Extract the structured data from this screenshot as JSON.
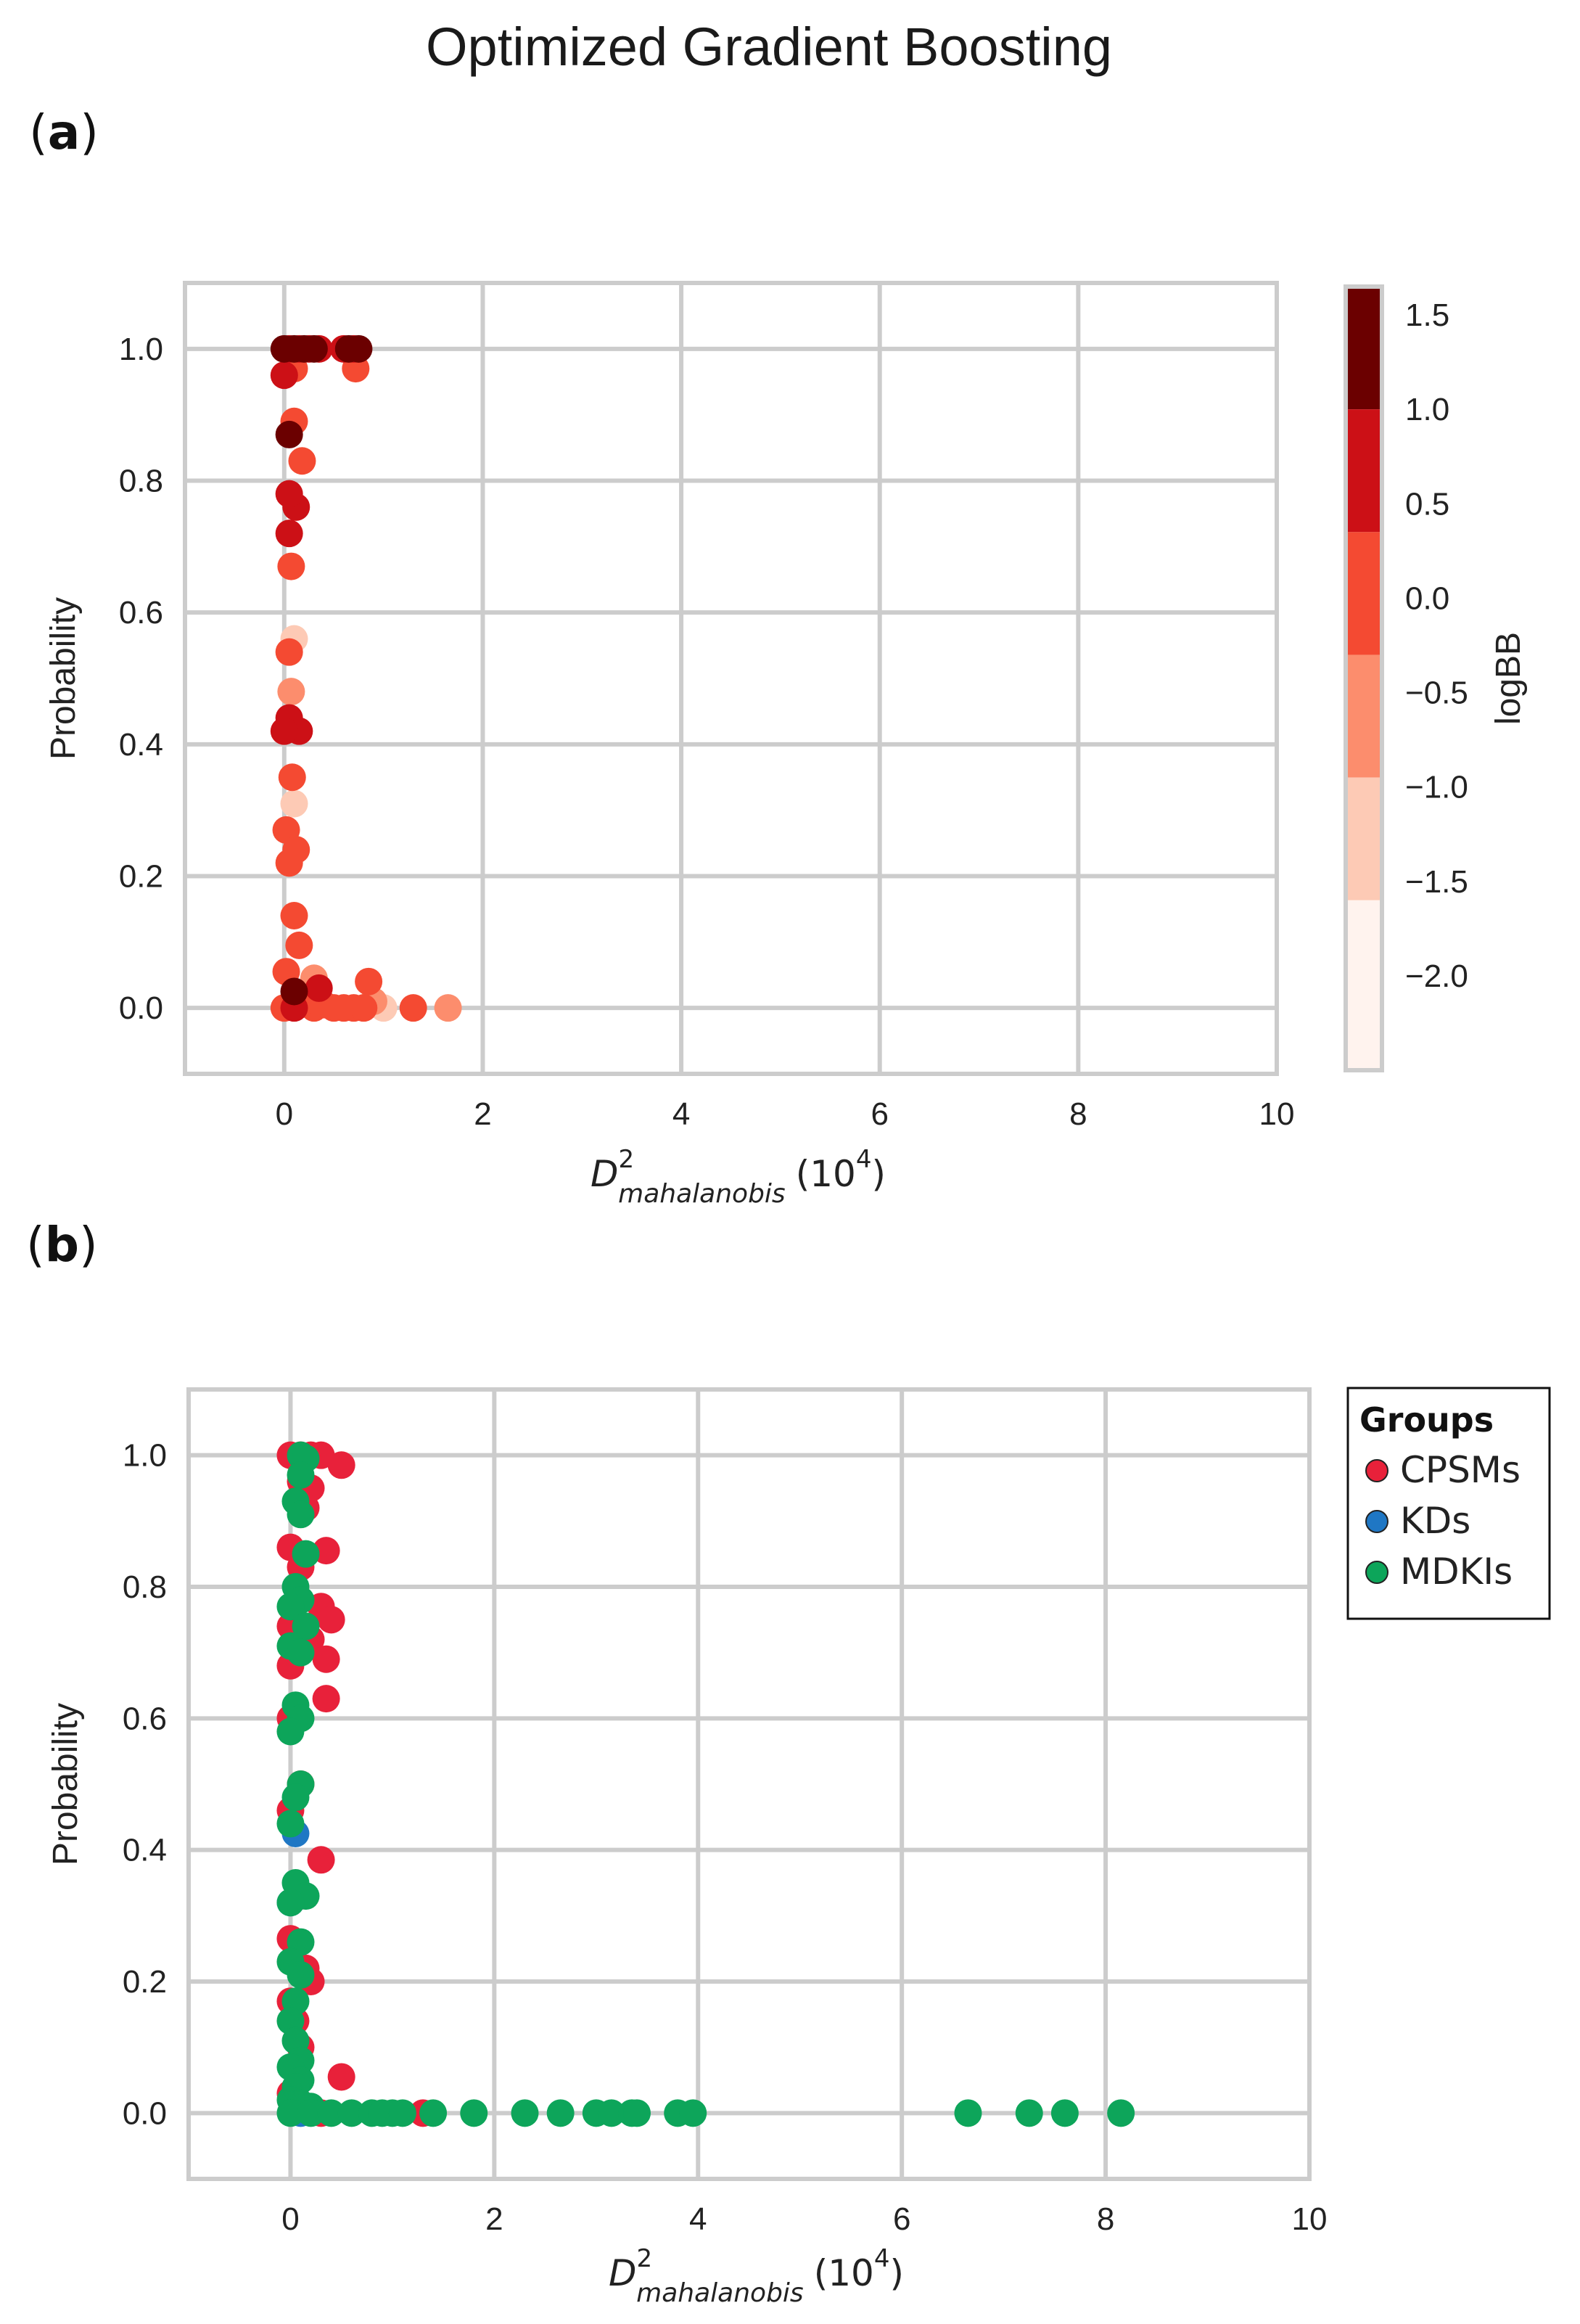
{
  "figure": {
    "title": "Optimized Gradient Boosting"
  },
  "chart_data": [
    {
      "panel_label": "(a)",
      "panel_letter": "a",
      "type": "scatter",
      "title": "",
      "xlabel": "D² mahalanobis (10⁴)",
      "xlabel_main": "D",
      "xlabel_sup": "2",
      "xlabel_sub": "mahalanobis",
      "xlabel_unit": "(10",
      "xlabel_unit_sup": "4",
      "xlabel_unit_close": ")",
      "ylabel": "Probability",
      "xlim": [
        -1,
        10
      ],
      "ylim": [
        -0.1,
        1.1
      ],
      "xticks": [
        0,
        2,
        4,
        6,
        8,
        10
      ],
      "yticks": [
        0.0,
        0.2,
        0.4,
        0.6,
        0.8,
        1.0
      ],
      "xtick_labels": [
        "0",
        "2",
        "4",
        "6",
        "8",
        "10"
      ],
      "ytick_labels": [
        "0.0",
        "0.2",
        "0.4",
        "0.6",
        "0.8",
        "1.0"
      ],
      "grid": true,
      "colorbar": {
        "label": "logBB",
        "range": [
          -2.5,
          1.65
        ],
        "ticks": [
          1.5,
          1.0,
          0.5,
          0.0,
          -0.5,
          -1.0,
          -1.5,
          -2.0
        ],
        "tick_labels": [
          "1.5",
          "1.0",
          "0.5",
          "0.0",
          "−0.5",
          "−1.0",
          "−1.5",
          "−2.0"
        ],
        "bins": [
          {
            "from": 1.0,
            "to": 1.65,
            "color": "#6b0000"
          },
          {
            "from": 0.35,
            "to": 1.0,
            "color": "#cc1016"
          },
          {
            "from": -0.3,
            "to": 0.35,
            "color": "#f44a32"
          },
          {
            "from": -0.95,
            "to": -0.3,
            "color": "#fc8d6d"
          },
          {
            "from": -1.6,
            "to": -0.95,
            "color": "#fdcab5"
          },
          {
            "from": -2.5,
            "to": -1.6,
            "color": "#fff3ee"
          }
        ]
      },
      "points": [
        {
          "x": 0.0,
          "y": 1.0,
          "c": 1.2
        },
        {
          "x": 0.05,
          "y": 1.0,
          "c": 0.6
        },
        {
          "x": 0.1,
          "y": 1.0,
          "c": 1.3
        },
        {
          "x": 0.15,
          "y": 1.0,
          "c": 0.8
        },
        {
          "x": 0.2,
          "y": 1.0,
          "c": 1.1
        },
        {
          "x": 0.25,
          "y": 1.0,
          "c": 0.7
        },
        {
          "x": 0.3,
          "y": 1.0,
          "c": 1.2
        },
        {
          "x": 0.35,
          "y": 1.0,
          "c": 0.5
        },
        {
          "x": 0.6,
          "y": 1.0,
          "c": 0.9
        },
        {
          "x": 0.65,
          "y": 1.0,
          "c": 1.2
        },
        {
          "x": 0.7,
          "y": 1.0,
          "c": 0.6
        },
        {
          "x": 0.75,
          "y": 1.0,
          "c": 1.0
        },
        {
          "x": 0.72,
          "y": 0.97,
          "c": 0.0
        },
        {
          "x": 0.0,
          "y": 0.96,
          "c": 0.5
        },
        {
          "x": 0.1,
          "y": 0.97,
          "c": 0.3
        },
        {
          "x": 0.1,
          "y": 0.89,
          "c": 0.0
        },
        {
          "x": 0.05,
          "y": 0.87,
          "c": 1.4
        },
        {
          "x": 0.18,
          "y": 0.83,
          "c": 0.1
        },
        {
          "x": 0.05,
          "y": 0.78,
          "c": 0.6
        },
        {
          "x": 0.12,
          "y": 0.76,
          "c": 0.5
        },
        {
          "x": 0.05,
          "y": 0.72,
          "c": 0.6
        },
        {
          "x": 0.07,
          "y": 0.67,
          "c": 0.2
        },
        {
          "x": 0.1,
          "y": 0.56,
          "c": -1.5
        },
        {
          "x": 0.05,
          "y": 0.54,
          "c": 0.1
        },
        {
          "x": 0.07,
          "y": 0.48,
          "c": -0.7
        },
        {
          "x": 0.05,
          "y": 0.44,
          "c": 0.6
        },
        {
          "x": 0.15,
          "y": 0.42,
          "c": 0.6
        },
        {
          "x": 0.0,
          "y": 0.42,
          "c": 0.6
        },
        {
          "x": 0.08,
          "y": 0.35,
          "c": 0.2
        },
        {
          "x": 0.1,
          "y": 0.31,
          "c": -1.5
        },
        {
          "x": 0.02,
          "y": 0.27,
          "c": 0.1
        },
        {
          "x": 0.12,
          "y": 0.24,
          "c": 0.2
        },
        {
          "x": 0.05,
          "y": 0.22,
          "c": 0.1
        },
        {
          "x": 0.1,
          "y": 0.14,
          "c": 0.2
        },
        {
          "x": 0.15,
          "y": 0.095,
          "c": 0.1
        },
        {
          "x": 0.02,
          "y": 0.055,
          "c": 0.0
        },
        {
          "x": 0.1,
          "y": 0.025,
          "c": 1.5
        },
        {
          "x": 0.3,
          "y": 0.045,
          "c": -0.6
        },
        {
          "x": 0.35,
          "y": 0.03,
          "c": 0.5
        },
        {
          "x": 0.85,
          "y": 0.04,
          "c": 0.0
        },
        {
          "x": 0.0,
          "y": 0.0,
          "c": 0.2
        },
        {
          "x": 0.1,
          "y": 0.0,
          "c": 0.5
        },
        {
          "x": 0.2,
          "y": 0.01,
          "c": 0.3
        },
        {
          "x": 0.3,
          "y": 0.0,
          "c": 0.1
        },
        {
          "x": 0.4,
          "y": 0.005,
          "c": 0.0
        },
        {
          "x": 0.5,
          "y": 0.0,
          "c": 0.2
        },
        {
          "x": 0.6,
          "y": 0.0,
          "c": 0.1
        },
        {
          "x": 0.7,
          "y": 0.0,
          "c": 0.0
        },
        {
          "x": 0.8,
          "y": 0.0,
          "c": 0.2
        },
        {
          "x": 0.9,
          "y": 0.01,
          "c": -0.7
        },
        {
          "x": 1.0,
          "y": 0.0,
          "c": -1.2
        },
        {
          "x": 1.3,
          "y": 0.0,
          "c": 0.1
        },
        {
          "x": 1.65,
          "y": 0.0,
          "c": -0.8
        }
      ]
    },
    {
      "panel_label": "(b)",
      "panel_letter": "b",
      "type": "scatter",
      "title": "",
      "xlabel": "D² mahalanobis (10⁴)",
      "xlabel_main": "D",
      "xlabel_sup": "2",
      "xlabel_sub": "mahalanobis",
      "xlabel_unit": "(10",
      "xlabel_unit_sup": "4",
      "xlabel_unit_close": ")",
      "ylabel": "Probability",
      "xlim": [
        -1,
        10
      ],
      "ylim": [
        -0.1,
        1.1
      ],
      "xticks": [
        0,
        2,
        4,
        6,
        8,
        10
      ],
      "yticks": [
        0.0,
        0.2,
        0.4,
        0.6,
        0.8,
        1.0
      ],
      "xtick_labels": [
        "0",
        "2",
        "4",
        "6",
        "8",
        "10"
      ],
      "ytick_labels": [
        "0.0",
        "0.2",
        "0.4",
        "0.6",
        "0.8",
        "1.0"
      ],
      "grid": true,
      "legend": {
        "title": "Groups",
        "placement": "outside-right-top",
        "entries": [
          {
            "label": "CPSMs",
            "color": "#e8213a"
          },
          {
            "label": "KDs",
            "color": "#1f77c4"
          },
          {
            "label": "MDKIs",
            "color": "#0da55a"
          }
        ]
      },
      "series": [
        {
          "name": "CPSMs",
          "color": "#e8213a",
          "points": [
            [
              0.0,
              1.0
            ],
            [
              0.1,
              1.0
            ],
            [
              0.2,
              1.0
            ],
            [
              0.3,
              1.0
            ],
            [
              0.5,
              0.985
            ],
            [
              0.1,
              0.96
            ],
            [
              0.2,
              0.95
            ],
            [
              0.15,
              0.92
            ],
            [
              0.0,
              0.86
            ],
            [
              0.35,
              0.855
            ],
            [
              0.1,
              0.83
            ],
            [
              0.3,
              0.77
            ],
            [
              0.4,
              0.75
            ],
            [
              0.0,
              0.74
            ],
            [
              0.2,
              0.72
            ],
            [
              0.35,
              0.69
            ],
            [
              0.0,
              0.68
            ],
            [
              0.35,
              0.63
            ],
            [
              0.0,
              0.6
            ],
            [
              0.1,
              0.5
            ],
            [
              0.0,
              0.46
            ],
            [
              0.3,
              0.385
            ],
            [
              0.1,
              0.33
            ],
            [
              0.0,
              0.265
            ],
            [
              0.15,
              0.22
            ],
            [
              0.2,
              0.2
            ],
            [
              0.0,
              0.17
            ],
            [
              0.05,
              0.14
            ],
            [
              0.1,
              0.1
            ],
            [
              0.5,
              0.055
            ],
            [
              0.0,
              0.03
            ],
            [
              0.3,
              0.0
            ],
            [
              1.3,
              0.0
            ]
          ]
        },
        {
          "name": "KDs",
          "color": "#1f77c4",
          "points": [
            [
              0.05,
              0.425
            ],
            [
              0.0,
              0.32
            ],
            [
              0.1,
              0.0
            ]
          ]
        },
        {
          "name": "MDKIs",
          "color": "#0da55a",
          "points": [
            [
              0.1,
              1.0
            ],
            [
              0.15,
              0.995
            ],
            [
              0.1,
              0.97
            ],
            [
              0.05,
              0.93
            ],
            [
              0.1,
              0.91
            ],
            [
              0.15,
              0.85
            ],
            [
              0.05,
              0.8
            ],
            [
              0.1,
              0.78
            ],
            [
              0.0,
              0.77
            ],
            [
              0.15,
              0.74
            ],
            [
              0.0,
              0.71
            ],
            [
              0.1,
              0.7
            ],
            [
              0.05,
              0.62
            ],
            [
              0.1,
              0.6
            ],
            [
              0.0,
              0.58
            ],
            [
              0.1,
              0.5
            ],
            [
              0.05,
              0.48
            ],
            [
              0.0,
              0.44
            ],
            [
              0.05,
              0.35
            ],
            [
              0.15,
              0.33
            ],
            [
              0.0,
              0.32
            ],
            [
              0.1,
              0.26
            ],
            [
              0.0,
              0.23
            ],
            [
              0.1,
              0.21
            ],
            [
              0.05,
              0.17
            ],
            [
              0.0,
              0.14
            ],
            [
              0.05,
              0.11
            ],
            [
              0.1,
              0.08
            ],
            [
              0.0,
              0.07
            ],
            [
              0.1,
              0.05
            ],
            [
              0.05,
              0.04
            ],
            [
              0.0,
              0.02
            ],
            [
              0.1,
              0.015
            ],
            [
              0.2,
              0.01
            ],
            [
              0.0,
              0.0
            ],
            [
              0.2,
              0.0
            ],
            [
              0.4,
              0.0
            ],
            [
              0.6,
              0.0
            ],
            [
              0.8,
              0.0
            ],
            [
              0.9,
              0.0
            ],
            [
              1.0,
              0.0
            ],
            [
              1.1,
              0.0
            ],
            [
              1.4,
              0.0
            ],
            [
              1.8,
              0.0
            ],
            [
              2.3,
              0.0
            ],
            [
              2.65,
              0.0
            ],
            [
              3.0,
              0.0
            ],
            [
              3.15,
              0.0
            ],
            [
              3.35,
              0.0
            ],
            [
              3.4,
              0.0
            ],
            [
              3.8,
              0.0
            ],
            [
              3.95,
              0.0
            ],
            [
              6.65,
              0.0
            ],
            [
              7.25,
              0.0
            ],
            [
              7.6,
              0.0
            ],
            [
              8.15,
              0.0
            ]
          ]
        }
      ]
    }
  ]
}
